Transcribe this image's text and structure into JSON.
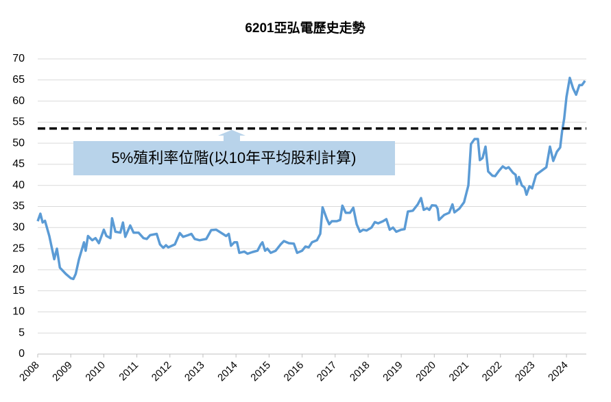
{
  "chart_data": {
    "type": "line",
    "title": "6201亞弘電歷史走勢",
    "x": [
      2008.0,
      2008.08,
      2008.15,
      2008.22,
      2008.35,
      2008.5,
      2008.58,
      2008.67,
      2008.85,
      2009.0,
      2009.08,
      2009.15,
      2009.25,
      2009.4,
      2009.45,
      2009.52,
      2009.65,
      2009.75,
      2009.85,
      2010.0,
      2010.08,
      2010.2,
      2010.25,
      2010.35,
      2010.5,
      2010.58,
      2010.65,
      2010.8,
      2010.9,
      2011.05,
      2011.2,
      2011.3,
      2011.4,
      2011.6,
      2011.7,
      2011.8,
      2011.88,
      2011.95,
      2012.15,
      2012.3,
      2012.4,
      2012.55,
      2012.65,
      2012.75,
      2012.9,
      2013.1,
      2013.25,
      2013.4,
      2013.6,
      2013.7,
      2013.78,
      2013.85,
      2013.95,
      2014.03,
      2014.1,
      2014.25,
      2014.35,
      2014.5,
      2014.65,
      2014.75,
      2014.8,
      2014.88,
      2014.95,
      2015.05,
      2015.2,
      2015.35,
      2015.45,
      2015.6,
      2015.75,
      2015.85,
      2016.0,
      2016.1,
      2016.2,
      2016.3,
      2016.45,
      2016.55,
      2016.62,
      2016.75,
      2016.82,
      2016.9,
      2017.05,
      2017.15,
      2017.22,
      2017.32,
      2017.45,
      2017.55,
      2017.65,
      2017.75,
      2017.85,
      2017.95,
      2018.1,
      2018.2,
      2018.3,
      2018.45,
      2018.55,
      2018.65,
      2018.75,
      2018.85,
      2019.0,
      2019.1,
      2019.2,
      2019.35,
      2019.5,
      2019.6,
      2019.68,
      2019.78,
      2019.85,
      2019.93,
      2020.05,
      2020.1,
      2020.14,
      2020.3,
      2020.45,
      2020.55,
      2020.61,
      2020.76,
      2020.9,
      2021.03,
      2021.11,
      2021.22,
      2021.32,
      2021.38,
      2021.46,
      2021.55,
      2021.63,
      2021.76,
      2021.84,
      2021.96,
      2022.07,
      2022.17,
      2022.25,
      2022.38,
      2022.46,
      2022.5,
      2022.56,
      2022.65,
      2022.73,
      2022.79,
      2022.88,
      2022.96,
      2023.08,
      2023.25,
      2023.39,
      2023.5,
      2023.6,
      2023.71,
      2023.81,
      2023.87,
      2023.93,
      2024.0,
      2024.1,
      2024.2,
      2024.29,
      2024.39,
      2024.47,
      2024.56
    ],
    "values": [
      31.5,
      33.3,
      31.2,
      31.6,
      28,
      22.5,
      25,
      20.5,
      19,
      18,
      17.8,
      19,
      22.5,
      26.5,
      24.5,
      28,
      27,
      27.5,
      26.3,
      29.5,
      28,
      27.5,
      32.2,
      29,
      28.8,
      31.2,
      27.8,
      30.5,
      28.8,
      28.8,
      27.5,
      27.3,
      28.2,
      28.5,
      26,
      25.2,
      25.8,
      25.3,
      26,
      28.7,
      27.8,
      28.2,
      28.5,
      27.3,
      27,
      27.3,
      29.4,
      29.5,
      28.5,
      28,
      28.5,
      25.7,
      26.5,
      26.5,
      24,
      24.3,
      23.8,
      24.2,
      24.5,
      26,
      26.5,
      24.5,
      25,
      24,
      24.5,
      26,
      26.8,
      26.3,
      26.2,
      24,
      24.5,
      25.5,
      25.3,
      26.5,
      27,
      28.5,
      34.8,
      32,
      30.8,
      31.5,
      31.5,
      31.8,
      35.2,
      33.5,
      33.5,
      34.7,
      30.8,
      29,
      29.5,
      29.3,
      30,
      31.3,
      31,
      31.5,
      32,
      29.5,
      30,
      29,
      29.5,
      29.6,
      33.8,
      34,
      35.5,
      37,
      34.2,
      34.6,
      34.2,
      35.3,
      35.2,
      34.5,
      31.8,
      33,
      33.5,
      35.5,
      33.6,
      34.5,
      36,
      40,
      49.8,
      51,
      51,
      46,
      46.5,
      49.2,
      43.3,
      42.3,
      42.2,
      43.5,
      44.5,
      44,
      44.3,
      43,
      42.5,
      40.3,
      42,
      40,
      39.5,
      37.8,
      39.8,
      39.3,
      42.5,
      43.5,
      44.3,
      49.2,
      45.8,
      48,
      49,
      53,
      55.8,
      61,
      65.5,
      63,
      61.5,
      63.8,
      63.8,
      64.8
    ],
    "color": "#5b9bd5",
    "xlim": [
      2008,
      2024.6
    ],
    "xticks": [
      2008,
      2009,
      2010,
      2011,
      2012,
      2013,
      2014,
      2015,
      2016,
      2017,
      2018,
      2019,
      2020,
      2021,
      2022,
      2023,
      2024
    ],
    "ylim": [
      0,
      70
    ],
    "yticks": [
      0,
      5,
      10,
      15,
      20,
      25,
      30,
      35,
      40,
      45,
      50,
      55,
      60,
      65,
      70
    ],
    "grid": true,
    "reference_line": 53.5,
    "annotation": "5%殖利率位階(以10年平均股利計算)"
  }
}
